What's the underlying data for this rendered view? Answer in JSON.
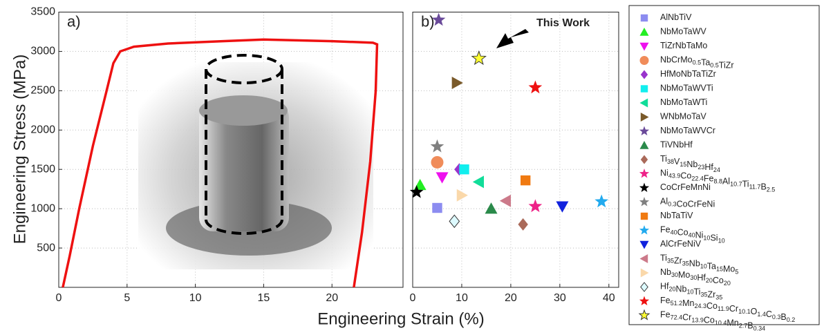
{
  "chart_data": [
    {
      "type": "line",
      "annotation": "a)",
      "xlabel": "Engineering Strain (%)",
      "ylabel": "Engineering Stress (MPa)",
      "xlim": [
        0,
        25.2
      ],
      "ylim": [
        0,
        3500
      ],
      "xticks": [
        0,
        5,
        10,
        15,
        20
      ],
      "yticks": [
        500,
        1000,
        1500,
        2000,
        2500,
        3000,
        3500
      ],
      "grid": true,
      "series": [
        {
          "color": "#ee1111",
          "x": [
            0.3,
            0.8,
            1.5,
            2.5,
            3.5,
            4.0,
            4.5,
            5.5,
            8,
            12,
            15,
            20,
            23.0,
            23.3,
            23.2,
            22.8,
            22.2,
            21.6
          ],
          "y": [
            0,
            400,
            1000,
            1800,
            2500,
            2850,
            3000,
            3060,
            3100,
            3130,
            3150,
            3130,
            3110,
            3090,
            2500,
            1600,
            700,
            0
          ]
        }
      ]
    },
    {
      "type": "scatter",
      "annotation": "b)",
      "callout": "This Work",
      "xlim": [
        0,
        42
      ],
      "ylim": [
        0,
        3500
      ],
      "xticks": [
        0,
        10,
        20,
        30,
        40
      ],
      "grid": true,
      "series": [
        {
          "name": "AlNbTiV",
          "marker": "square",
          "color": "#8c8cf0",
          "x": [
            5
          ],
          "y": [
            1010
          ]
        },
        {
          "name": "NbMoTaWV",
          "marker": "triangle-up",
          "color": "#22ee22",
          "x": [
            1.5
          ],
          "y": [
            1300
          ]
        },
        {
          "name": "TiZrNbTaMo",
          "marker": "triangle-down",
          "color": "#ee11ee",
          "x": [
            6
          ],
          "y": [
            1400
          ]
        },
        {
          "name": "NbCrMo0.5Ta0.5TiZr",
          "marker": "circle",
          "color": "#f08c5a",
          "x": [
            5
          ],
          "y": [
            1590
          ]
        },
        {
          "name": "HfMoNbTaTiZr",
          "marker": "diamond",
          "color": "#9933cc",
          "x": [
            9.5
          ],
          "y": [
            1500
          ]
        },
        {
          "name": "NbMoTaWVTi",
          "marker": "square",
          "color": "#11eeee",
          "x": [
            10.5
          ],
          "y": [
            1500
          ]
        },
        {
          "name": "NbMoTaWTi",
          "marker": "triangle-left",
          "color": "#11dd99",
          "x": [
            13.5
          ],
          "y": [
            1340
          ]
        },
        {
          "name": "WNbMoTaV",
          "marker": "triangle-right",
          "color": "#7a5a2a",
          "x": [
            9
          ],
          "y": [
            2600
          ]
        },
        {
          "name": "NbMoTaWVCr",
          "marker": "star",
          "color": "#6a4a9a",
          "x": [
            5.3
          ],
          "y": [
            3400
          ]
        },
        {
          "name": "TiVNbHf",
          "marker": "triangle-up",
          "color": "#2a8a4a",
          "x": [
            16
          ],
          "y": [
            1000
          ]
        },
        {
          "name": "Ti38V15Nb23Hf24",
          "marker": "diamond",
          "color": "#aa6a5a",
          "x": [
            22.5
          ],
          "y": [
            800
          ]
        },
        {
          "name": "Ni43.9Co22.4Fe8.8Al10.7Ti11.7B2.5",
          "marker": "star",
          "color": "#ee2288",
          "x": [
            25
          ],
          "y": [
            1030
          ]
        },
        {
          "name": "CoCrFeMnNi",
          "marker": "star",
          "color": "#000000",
          "x": [
            0.8
          ],
          "y": [
            1210
          ]
        },
        {
          "name": "Al0.3CoCrFeNi",
          "marker": "star",
          "color": "#808080",
          "x": [
            5
          ],
          "y": [
            1790
          ]
        },
        {
          "name": "NbTaTiV",
          "marker": "square",
          "color": "#f07a11",
          "x": [
            23
          ],
          "y": [
            1360
          ]
        },
        {
          "name": "Fe40Co40Ni10Si10",
          "marker": "star",
          "color": "#22aaee",
          "x": [
            38.5
          ],
          "y": [
            1090
          ]
        },
        {
          "name": "AlCrFeNiV",
          "marker": "triangle-down",
          "color": "#1122dd",
          "x": [
            30.5
          ],
          "y": [
            1030
          ]
        },
        {
          "name": "Ti35Zr35Nb10Ta15Mo5",
          "marker": "triangle-left",
          "color": "#cc7a8a",
          "x": [
            19
          ],
          "y": [
            1100
          ]
        },
        {
          "name": "Nb30Mo30Hf20Co20",
          "marker": "triangle-right",
          "color": "#fad8aa",
          "x": [
            10
          ],
          "y": [
            1170
          ]
        },
        {
          "name": "Hf20Nb10Ti35Zr35",
          "marker": "diamond",
          "color": "#ddfaff",
          "edgecolor": "#333333",
          "x": [
            8.5
          ],
          "y": [
            840
          ]
        },
        {
          "name": "Fe51.2Mn24.3Co11.9Cr10.1O1.4C0.3B0.2",
          "marker": "star",
          "color": "#ee1111",
          "x": [
            25
          ],
          "y": [
            2540
          ]
        },
        {
          "name": "Fe72.4Cr13.9Co10.4Mn2.7B0.34",
          "marker": "star",
          "color": "#ffff33",
          "edgecolor": "#333333",
          "x": [
            13.5
          ],
          "y": [
            2910
          ]
        }
      ]
    }
  ]
}
